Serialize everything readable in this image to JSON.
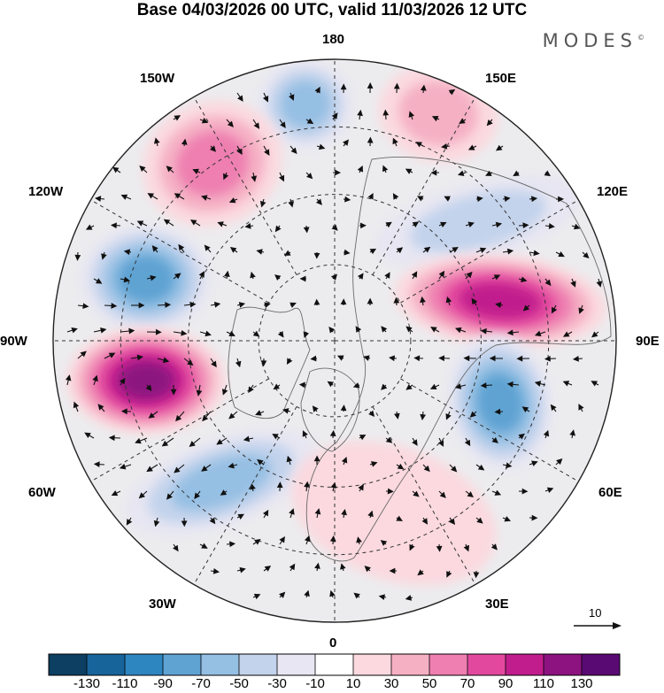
{
  "header": {
    "title": "Base 04/03/2026 00 UTC, valid 11/03/2026 12 UTC",
    "brand": "MODES",
    "brand_mark": "©"
  },
  "map": {
    "labels": {
      "lon_180": "180",
      "lon_150w": "150W",
      "lon_150e": "150E",
      "lon_120w": "120W",
      "lon_120e": "120E",
      "lon_90w": "90W",
      "lon_90e": "90E",
      "lon_60w": "60W",
      "lon_60e": "60E",
      "lon_30w": "30W",
      "lon_30e": "30E",
      "lon_0": "0"
    },
    "vector_reference": "10",
    "anomalies": [
      {
        "name": "gulf-of-alaska-blue-north",
        "value": -60
      },
      {
        "name": "bering-positive",
        "value": 50
      },
      {
        "name": "alaska-positive",
        "value": 70
      },
      {
        "name": "siberia-negative",
        "value": -50
      },
      {
        "name": "canada-negative",
        "value": -90
      },
      {
        "name": "central-asia-positive",
        "value": 110
      },
      {
        "name": "hudson-positive",
        "value": 130
      },
      {
        "name": "india-negative",
        "value": -80
      },
      {
        "name": "atlantic-negative",
        "value": -70
      },
      {
        "name": "europe-positive",
        "value": 30
      }
    ]
  },
  "colorbar": {
    "tick_labels": [
      "-130",
      "-110",
      "-90",
      "-70",
      "-50",
      "-30",
      "-10",
      "10",
      "30",
      "50",
      "70",
      "90",
      "110",
      "130"
    ],
    "colors": [
      "#0c3f62",
      "#17649b",
      "#2e86c1",
      "#5fa3d3",
      "#95bfe3",
      "#c3d3ec",
      "#e7e6f2",
      "#ffffff",
      "#fbd9df",
      "#f5b0c4",
      "#ee7fb0",
      "#e2499e",
      "#c11d8d",
      "#8c1380",
      "#5a0a73"
    ]
  }
}
